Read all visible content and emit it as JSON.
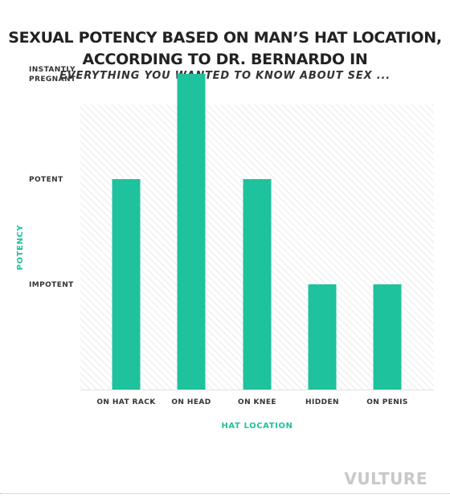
{
  "title_line1": "SEXUAL POTENCY BASED ON MAN’S HAT LOCATION,",
  "title_line2": "ACCORDING TO DR. BERNARDO IN",
  "subtitle": "EVERYTHING YOU WANTED TO KNOW ABOUT SEX ...",
  "brand": "VULTURE",
  "colors": {
    "bar": "#1ec29c",
    "axis_title": "#1ec29c",
    "background_hatch": "#dcdcdc"
  },
  "chart_data": {
    "type": "bar",
    "title": "SEXUAL POTENCY BASED ON MAN’S HAT LOCATION, ACCORDING TO DR. BERNARDO IN",
    "subtitle": "EVERYTHING YOU WANTED TO KNOW ABOUT SEX ...",
    "xlabel": "HAT LOCATION",
    "ylabel": "POTENCY",
    "categories": [
      "ON HAT RACK",
      "ON HEAD",
      "ON KNEE",
      "HIDDEN",
      "ON PENIS"
    ],
    "values": [
      2,
      3,
      2,
      1,
      1
    ],
    "y_levels": [
      {
        "value": 1,
        "label": "IMPOTENT"
      },
      {
        "value": 2,
        "label": "POTENT"
      },
      {
        "value": 3,
        "label": "INSTANTLY PREGNANT"
      }
    ],
    "y_level_label_lines": {
      "3": [
        "INSTANTLY",
        "PREGNANT"
      ]
    },
    "ylim": [
      0,
      3
    ],
    "grid": false,
    "legend": "none"
  }
}
